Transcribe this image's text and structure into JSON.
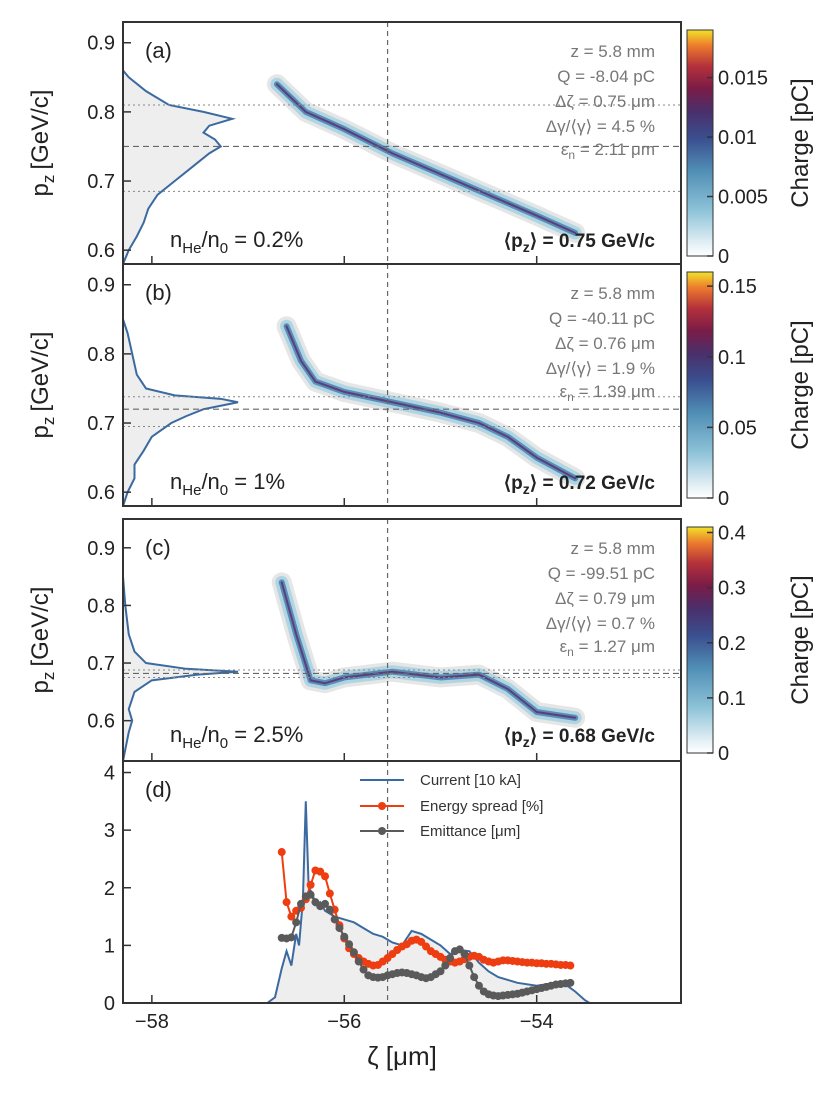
{
  "chart_data": [
    {
      "panel": "(a)",
      "type": "heatmap",
      "ylabel_main": "p",
      "ylabel_sub": "z",
      "ylabel_unit": "[GeV/c]",
      "ylim": [
        0.58,
        0.93
      ],
      "yticks": [
        "0.6",
        "0.7",
        "0.8",
        "0.9"
      ],
      "yticks_values": [
        0.6,
        0.7,
        0.8,
        0.9
      ],
      "density_label": "n",
      "density_sub1": "He",
      "density_mid": "/n",
      "density_sub2": "0",
      "density_value": " = 0.2%",
      "annot": [
        "z =   5.8 mm",
        "Q = -8.04 pC",
        "Δζ = 0.75 μm",
        "Δγ/⟨γ⟩ = 4.5 %",
        "ε",
        "n",
        " = 2.11 μm"
      ],
      "mean_label": "⟨p",
      "mean_sub": "z",
      "mean_value": "⟩ = 0.75 GeV/c",
      "mean_pz": 0.75,
      "band_lines": [
        0.81,
        0.685
      ],
      "colorbar_label": "Charge [pC]",
      "colorbar_max": 0.019,
      "colorbar_ticks": [
        "0",
        "0.005",
        "0.01",
        "0.015"
      ],
      "colorbar_tick_values": [
        0,
        0.005,
        0.01,
        0.015
      ],
      "beam_centerline": [
        [
          -56.7,
          0.84
        ],
        [
          -56.4,
          0.8
        ],
        [
          -56.0,
          0.775
        ],
        [
          -55.5,
          0.74
        ],
        [
          -55.0,
          0.71
        ],
        [
          -54.5,
          0.68
        ],
        [
          -54.0,
          0.65
        ],
        [
          -53.6,
          0.625
        ]
      ],
      "projection": [
        [
          0.58,
          0.0
        ],
        [
          0.6,
          0.05
        ],
        [
          0.62,
          0.12
        ],
        [
          0.64,
          0.18
        ],
        [
          0.66,
          0.22
        ],
        [
          0.68,
          0.3
        ],
        [
          0.7,
          0.45
        ],
        [
          0.72,
          0.6
        ],
        [
          0.74,
          0.75
        ],
        [
          0.75,
          0.85
        ],
        [
          0.76,
          0.8
        ],
        [
          0.77,
          0.7
        ],
        [
          0.78,
          0.75
        ],
        [
          0.79,
          0.95
        ],
        [
          0.8,
          0.7
        ],
        [
          0.81,
          0.4
        ],
        [
          0.83,
          0.2
        ],
        [
          0.85,
          0.05
        ],
        [
          0.86,
          0.0
        ]
      ]
    },
    {
      "panel": "(b)",
      "type": "heatmap",
      "ylabel_main": "p",
      "ylabel_sub": "z",
      "ylabel_unit": "[GeV/c]",
      "ylim": [
        0.58,
        0.93
      ],
      "yticks": [
        "0.6",
        "0.7",
        "0.8",
        "0.9"
      ],
      "yticks_values": [
        0.6,
        0.7,
        0.8,
        0.9
      ],
      "density_label": "n",
      "density_sub1": "He",
      "density_mid": "/n",
      "density_sub2": "0",
      "density_value": " = 1%",
      "annot": [
        "z =   5.8 mm",
        "Q = -40.11 pC",
        "Δζ = 0.76 μm",
        "Δγ/⟨γ⟩ = 1.9 %",
        "ε",
        "n",
        " = 1.39 μm"
      ],
      "mean_label": "⟨p",
      "mean_sub": "z",
      "mean_value": "⟩ = 0.72 GeV/c",
      "mean_pz": 0.72,
      "band_lines": [
        0.738,
        0.695
      ],
      "colorbar_label": "Charge [pC]",
      "colorbar_max": 0.16,
      "colorbar_ticks": [
        "0",
        "0.05",
        "0.1",
        "0.15"
      ],
      "colorbar_tick_values": [
        0,
        0.05,
        0.1,
        0.15
      ],
      "beam_centerline": [
        [
          -56.6,
          0.84
        ],
        [
          -56.45,
          0.79
        ],
        [
          -56.3,
          0.76
        ],
        [
          -56.0,
          0.745
        ],
        [
          -55.5,
          0.73
        ],
        [
          -55.0,
          0.715
        ],
        [
          -54.6,
          0.7
        ],
        [
          -54.3,
          0.68
        ],
        [
          -54.0,
          0.65
        ],
        [
          -53.6,
          0.62
        ]
      ],
      "projection": [
        [
          0.58,
          0.0
        ],
        [
          0.6,
          0.04
        ],
        [
          0.62,
          0.1
        ],
        [
          0.64,
          0.1
        ],
        [
          0.66,
          0.18
        ],
        [
          0.68,
          0.25
        ],
        [
          0.7,
          0.42
        ],
        [
          0.71,
          0.55
        ],
        [
          0.72,
          0.7
        ],
        [
          0.725,
          0.85
        ],
        [
          0.73,
          1.0
        ],
        [
          0.735,
          0.85
        ],
        [
          0.74,
          0.45
        ],
        [
          0.75,
          0.2
        ],
        [
          0.77,
          0.12
        ],
        [
          0.8,
          0.08
        ],
        [
          0.83,
          0.04
        ],
        [
          0.85,
          0.0
        ]
      ]
    },
    {
      "panel": "(c)",
      "type": "heatmap",
      "ylabel_main": "p",
      "ylabel_sub": "z",
      "ylabel_unit": "[GeV/c]",
      "ylim": [
        0.53,
        0.95
      ],
      "yticks": [
        "0.6",
        "0.7",
        "0.8",
        "0.9"
      ],
      "yticks_values": [
        0.6,
        0.7,
        0.8,
        0.9
      ],
      "density_label": "n",
      "density_sub1": "He",
      "density_mid": "/n",
      "density_sub2": "0",
      "density_value": " = 2.5%",
      "annot": [
        "z =   5.8 mm",
        "Q = -99.51 pC",
        "Δζ = 0.79 μm",
        "Δγ/⟨γ⟩ = 0.7 %",
        "ε",
        "n",
        " = 1.27 μm"
      ],
      "mean_label": "⟨p",
      "mean_sub": "z",
      "mean_value": "⟩ = 0.68 GeV/c",
      "mean_pz": 0.682,
      "band_lines": [
        0.688,
        0.675
      ],
      "colorbar_label": "Charge [pC]",
      "colorbar_max": 0.41,
      "colorbar_ticks": [
        "0",
        "0.1",
        "0.2",
        "0.3",
        "0.4"
      ],
      "colorbar_tick_values": [
        0,
        0.1,
        0.2,
        0.3,
        0.4
      ],
      "beam_centerline": [
        [
          -56.65,
          0.84
        ],
        [
          -56.5,
          0.75
        ],
        [
          -56.35,
          0.67
        ],
        [
          -56.2,
          0.665
        ],
        [
          -56.0,
          0.675
        ],
        [
          -55.5,
          0.685
        ],
        [
          -55.0,
          0.675
        ],
        [
          -54.6,
          0.68
        ],
        [
          -54.3,
          0.655
        ],
        [
          -54.0,
          0.615
        ],
        [
          -53.6,
          0.605
        ]
      ],
      "projection": [
        [
          0.53,
          0.0
        ],
        [
          0.58,
          0.05
        ],
        [
          0.6,
          0.08
        ],
        [
          0.62,
          0.05
        ],
        [
          0.65,
          0.1
        ],
        [
          0.67,
          0.25
        ],
        [
          0.68,
          0.65
        ],
        [
          0.685,
          1.0
        ],
        [
          0.69,
          0.55
        ],
        [
          0.7,
          0.2
        ],
        [
          0.72,
          0.1
        ],
        [
          0.75,
          0.05
        ],
        [
          0.8,
          0.02
        ],
        [
          0.85,
          0.0
        ]
      ]
    },
    {
      "panel": "(d)",
      "type": "line",
      "xlabel": "ζ [μm]",
      "xlim": [
        -58.3,
        -52.5
      ],
      "xticks": [
        "−58",
        "−56",
        "−54"
      ],
      "xticks_values": [
        -58,
        -56,
        -54
      ],
      "ylim": [
        0,
        4.2
      ],
      "yticks": [
        "0",
        "1",
        "2",
        "3",
        "4"
      ],
      "yticks_values": [
        0,
        1,
        2,
        3,
        4
      ],
      "vline_x": -55.55,
      "legend": [
        "Current [10 kA]",
        "Energy spread [%]",
        "Emittance [μm]"
      ],
      "series": [
        {
          "name": "Current [10 kA]",
          "color": "#3b6aa0",
          "points": [
            [
              -56.8,
              0.0
            ],
            [
              -56.72,
              0.1
            ],
            [
              -56.65,
              0.6
            ],
            [
              -56.6,
              0.9
            ],
            [
              -56.55,
              0.65
            ],
            [
              -56.5,
              1.2
            ],
            [
              -56.47,
              1.0
            ],
            [
              -56.43,
              1.8
            ],
            [
              -56.4,
              3.5
            ],
            [
              -56.37,
              2.0
            ],
            [
              -56.33,
              1.9
            ],
            [
              -56.3,
              1.7
            ],
            [
              -56.25,
              1.75
            ],
            [
              -56.2,
              1.6
            ],
            [
              -56.1,
              1.5
            ],
            [
              -56.0,
              1.45
            ],
            [
              -55.9,
              1.4
            ],
            [
              -55.8,
              1.3
            ],
            [
              -55.7,
              1.2
            ],
            [
              -55.6,
              1.15
            ],
            [
              -55.5,
              1.05
            ],
            [
              -55.4,
              1.0
            ],
            [
              -55.3,
              1.25
            ],
            [
              -55.2,
              1.2
            ],
            [
              -55.1,
              1.1
            ],
            [
              -55.0,
              1.0
            ],
            [
              -54.9,
              0.85
            ],
            [
              -54.8,
              0.92
            ],
            [
              -54.7,
              0.9
            ],
            [
              -54.6,
              0.7
            ],
            [
              -54.5,
              0.55
            ],
            [
              -54.4,
              0.45
            ],
            [
              -54.3,
              0.4
            ],
            [
              -54.2,
              0.35
            ],
            [
              -54.0,
              0.3
            ],
            [
              -53.8,
              0.35
            ],
            [
              -53.7,
              0.32
            ],
            [
              -53.6,
              0.2
            ],
            [
              -53.5,
              0.05
            ],
            [
              -53.45,
              0.0
            ]
          ]
        },
        {
          "name": "Energy spread [%]",
          "color": "#ee3d10",
          "points": [
            [
              -56.65,
              2.62
            ],
            [
              -56.6,
              1.75
            ],
            [
              -56.55,
              1.5
            ],
            [
              -56.5,
              1.6
            ],
            [
              -56.45,
              1.65
            ],
            [
              -56.4,
              1.8
            ],
            [
              -56.35,
              2.05
            ],
            [
              -56.3,
              2.3
            ],
            [
              -56.25,
              2.28
            ],
            [
              -56.2,
              2.2
            ],
            [
              -56.15,
              1.9
            ],
            [
              -56.1,
              1.62
            ],
            [
              -56.05,
              1.35
            ],
            [
              -56.0,
              1.12
            ],
            [
              -55.95,
              0.95
            ],
            [
              -55.9,
              0.85
            ],
            [
              -55.85,
              0.78
            ],
            [
              -55.8,
              0.72
            ],
            [
              -55.75,
              0.68
            ],
            [
              -55.7,
              0.65
            ],
            [
              -55.65,
              0.66
            ],
            [
              -55.6,
              0.72
            ],
            [
              -55.55,
              0.78
            ],
            [
              -55.5,
              0.85
            ],
            [
              -55.45,
              0.92
            ],
            [
              -55.4,
              0.98
            ],
            [
              -55.35,
              1.02
            ],
            [
              -55.3,
              1.08
            ],
            [
              -55.25,
              1.1
            ],
            [
              -55.2,
              1.06
            ],
            [
              -55.15,
              0.98
            ],
            [
              -55.1,
              0.9
            ],
            [
              -55.05,
              0.85
            ],
            [
              -55.0,
              0.8
            ],
            [
              -54.95,
              0.75
            ],
            [
              -54.9,
              0.72
            ],
            [
              -54.85,
              0.7
            ],
            [
              -54.8,
              0.72
            ],
            [
              -54.75,
              0.76
            ],
            [
              -54.7,
              0.8
            ],
            [
              -54.65,
              0.82
            ],
            [
              -54.6,
              0.8
            ],
            [
              -54.55,
              0.75
            ],
            [
              -54.5,
              0.72
            ],
            [
              -54.45,
              0.7
            ],
            [
              -54.4,
              0.72
            ],
            [
              -54.35,
              0.74
            ],
            [
              -54.3,
              0.74
            ],
            [
              -54.25,
              0.73
            ],
            [
              -54.2,
              0.72
            ],
            [
              -54.15,
              0.71
            ],
            [
              -54.1,
              0.7
            ],
            [
              -54.05,
              0.7
            ],
            [
              -54.0,
              0.69
            ],
            [
              -53.95,
              0.69
            ],
            [
              -53.9,
              0.68
            ],
            [
              -53.85,
              0.68
            ],
            [
              -53.8,
              0.67
            ],
            [
              -53.75,
              0.66
            ],
            [
              -53.7,
              0.66
            ],
            [
              -53.65,
              0.65
            ]
          ]
        },
        {
          "name": "Emittance [μm]",
          "color": "#5a5a5a",
          "points": [
            [
              -56.65,
              1.13
            ],
            [
              -56.6,
              1.12
            ],
            [
              -56.55,
              1.14
            ],
            [
              -56.5,
              1.4
            ],
            [
              -56.45,
              1.72
            ],
            [
              -56.4,
              1.85
            ],
            [
              -56.35,
              1.88
            ],
            [
              -56.3,
              1.75
            ],
            [
              -56.25,
              1.68
            ],
            [
              -56.2,
              1.72
            ],
            [
              -56.15,
              1.62
            ],
            [
              -56.1,
              1.45
            ],
            [
              -56.05,
              1.3
            ],
            [
              -56.0,
              1.15
            ],
            [
              -55.95,
              1.02
            ],
            [
              -55.9,
              0.88
            ],
            [
              -55.85,
              0.72
            ],
            [
              -55.8,
              0.58
            ],
            [
              -55.75,
              0.48
            ],
            [
              -55.7,
              0.45
            ],
            [
              -55.65,
              0.44
            ],
            [
              -55.6,
              0.45
            ],
            [
              -55.55,
              0.48
            ],
            [
              -55.5,
              0.5
            ],
            [
              -55.45,
              0.52
            ],
            [
              -55.4,
              0.53
            ],
            [
              -55.35,
              0.52
            ],
            [
              -55.3,
              0.5
            ],
            [
              -55.25,
              0.48
            ],
            [
              -55.2,
              0.45
            ],
            [
              -55.15,
              0.43
            ],
            [
              -55.1,
              0.45
            ],
            [
              -55.05,
              0.5
            ],
            [
              -55.0,
              0.55
            ],
            [
              -54.95,
              0.65
            ],
            [
              -54.9,
              0.78
            ],
            [
              -54.85,
              0.9
            ],
            [
              -54.8,
              0.93
            ],
            [
              -54.75,
              0.85
            ],
            [
              -54.7,
              0.65
            ],
            [
              -54.65,
              0.45
            ],
            [
              -54.6,
              0.3
            ],
            [
              -54.55,
              0.2
            ],
            [
              -54.5,
              0.15
            ],
            [
              -54.45,
              0.13
            ],
            [
              -54.4,
              0.12
            ],
            [
              -54.35,
              0.13
            ],
            [
              -54.3,
              0.14
            ],
            [
              -54.25,
              0.15
            ],
            [
              -54.2,
              0.16
            ],
            [
              -54.15,
              0.18
            ],
            [
              -54.1,
              0.2
            ],
            [
              -54.05,
              0.22
            ],
            [
              -54.0,
              0.24
            ],
            [
              -53.95,
              0.26
            ],
            [
              -53.9,
              0.28
            ],
            [
              -53.85,
              0.3
            ],
            [
              -53.8,
              0.32
            ],
            [
              -53.75,
              0.33
            ],
            [
              -53.7,
              0.34
            ],
            [
              -53.65,
              0.35
            ]
          ]
        }
      ]
    }
  ]
}
